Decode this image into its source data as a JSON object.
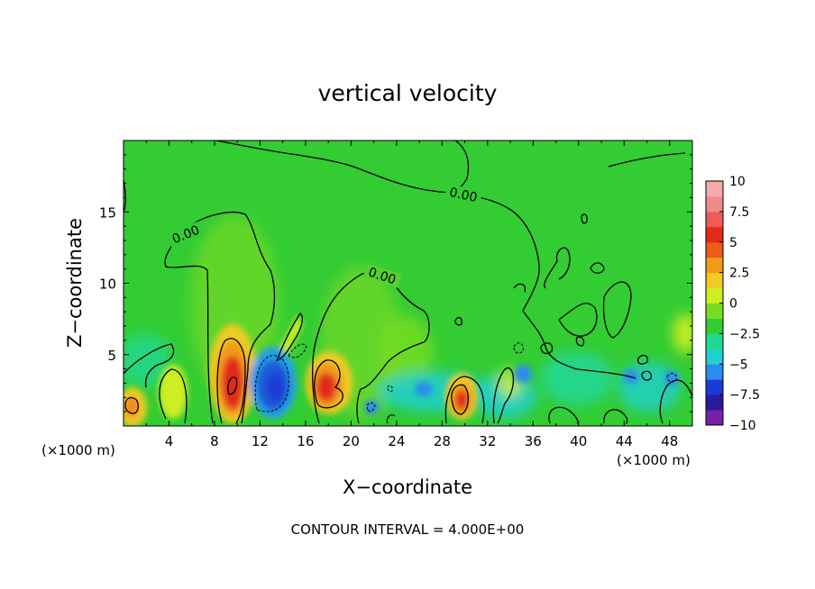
{
  "chart_data": {
    "type": "heatmap",
    "title": "vertical velocity",
    "xlabel": "X−coordinate",
    "ylabel": "Z−coordinate",
    "xlim": [
      0,
      50
    ],
    "ylim": [
      0,
      20
    ],
    "x_ticks": [
      4,
      8,
      12,
      16,
      20,
      24,
      28,
      32,
      36,
      40,
      44,
      48
    ],
    "x_tick_labels": [
      "4",
      "8",
      "12",
      "16",
      "20",
      "24",
      "28",
      "32",
      "36",
      "40",
      "44",
      "48"
    ],
    "y_ticks": [
      5,
      10,
      15
    ],
    "y_tick_labels": [
      "5",
      "10",
      "15"
    ],
    "x_unit_left": "(×1000 m)",
    "x_unit_right": "(×1000 m)",
    "footer": "CONTOUR INTERVAL = 4.000E+00",
    "contour_label": "0.00",
    "colorbar": {
      "range": [
        -10,
        10
      ],
      "tick_values": [
        10,
        7.5,
        5,
        2.5,
        0,
        -2.5,
        -5,
        -7.5,
        -10
      ],
      "tick_labels": [
        "10",
        "7.5",
        "5",
        "2.5",
        "0",
        "−2.5",
        "−5",
        "−7.5",
        "−10"
      ],
      "colors": [
        "#7a1fa8",
        "#2a1a9e",
        "#1a3ad8",
        "#2a8cf0",
        "#22d0d0",
        "#22d890",
        "#33cc33",
        "#77dd22",
        "#ccee22",
        "#eecc22",
        "#f09a1a",
        "#ee5a1a",
        "#e02a1a",
        "#f05a5a",
        "#f08a8a",
        "#f4aaaa"
      ]
    },
    "features": [
      {
        "kind": "updraft",
        "x": 0.8,
        "z": 1.4,
        "w": 4.5
      },
      {
        "kind": "updraft",
        "x": 3.5,
        "z": 2.2,
        "w": 2
      },
      {
        "kind": "updraft",
        "x": 9.8,
        "z": 3.2,
        "w": 8.5
      },
      {
        "kind": "updraft",
        "x": 18.0,
        "z": 2.6,
        "w": 7.5
      },
      {
        "kind": "updraft",
        "x": 29.6,
        "z": 1.9,
        "w": 8.5
      },
      {
        "kind": "updraft",
        "x": 14.5,
        "z": 6.5,
        "w": 2.5
      },
      {
        "kind": "downdraft",
        "x": 13.3,
        "z": 2.6,
        "w": -6.5
      },
      {
        "kind": "downdraft",
        "x": 20.5,
        "z": 2.8,
        "w": -2.5
      },
      {
        "kind": "downdraft",
        "x": 26.5,
        "z": 2.3,
        "w": -2.5
      },
      {
        "kind": "downdraft",
        "x": 34.5,
        "z": 3.5,
        "w": -3.5
      },
      {
        "kind": "downdraft",
        "x": 45.5,
        "z": 3.5,
        "w": -3
      }
    ]
  }
}
